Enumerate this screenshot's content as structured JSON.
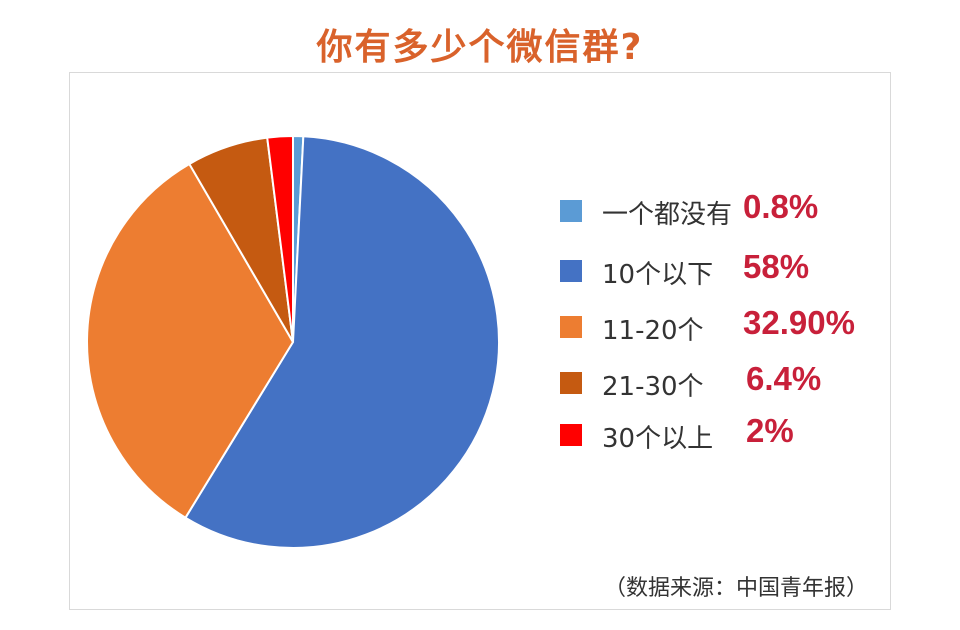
{
  "chart_data": {
    "type": "pie",
    "title": "你有多少个微信群?",
    "categories": [
      "一个都没有",
      "10个以下",
      "11-20个",
      "21-30个",
      "30个以上"
    ],
    "values": [
      0.8,
      58,
      32.9,
      6.4,
      2
    ],
    "value_labels": [
      "0.8%",
      "58%",
      "32.90%",
      "6.4%",
      "2%"
    ],
    "colors": [
      "#5b9bd5",
      "#4472c4",
      "#ed7d31",
      "#c55a11",
      "#ff0000"
    ],
    "legend": "right"
  },
  "source": "（数据来源：中国青年报）"
}
